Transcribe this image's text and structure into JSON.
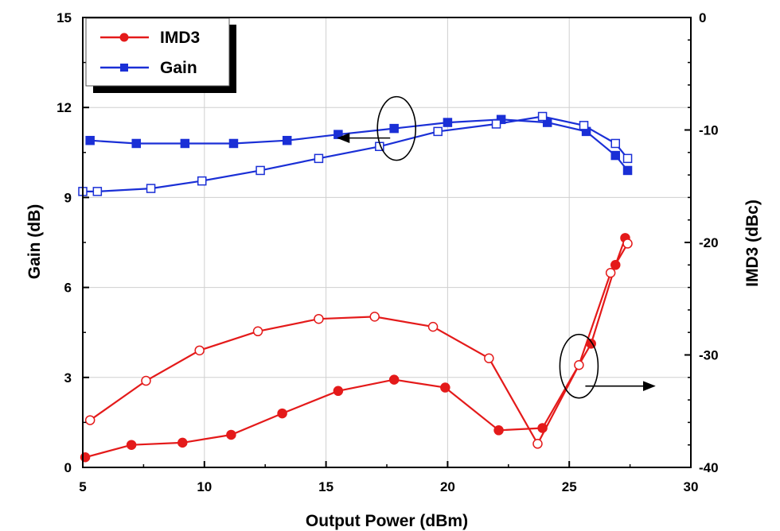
{
  "chart_data": {
    "type": "line",
    "xlabel": "Output Power (dBm)",
    "ylabel": "Gain (dB)",
    "y2label": "IMD3 (dBc)",
    "xlim": [
      5,
      30
    ],
    "ylim": [
      0,
      15
    ],
    "y2lim": [
      -40,
      0
    ],
    "xticks": [
      "5",
      "10",
      "15",
      "20",
      "25",
      "30"
    ],
    "yticks": [
      "0",
      "3",
      "6",
      "9",
      "12",
      "15"
    ],
    "y2ticks": [
      "-40",
      "-30",
      "-20",
      "-10",
      "0"
    ],
    "grid": true,
    "legend_position": "top-left",
    "legend": [
      {
        "label": "IMD3",
        "color": "#e41a1a",
        "marker": "circle"
      },
      {
        "label": "Gain",
        "color": "#1a2fd6",
        "marker": "square"
      }
    ],
    "series": [
      {
        "name": "Gain",
        "axis": "left",
        "color": "#1a2fd6",
        "marker": "square",
        "fill": "filled",
        "x": [
          5.3,
          7.2,
          9.2,
          11.2,
          13.4,
          15.5,
          17.8,
          20.0,
          22.2,
          24.1,
          25.7,
          26.9,
          27.4
        ],
        "y": [
          10.9,
          10.8,
          10.8,
          10.8,
          10.9,
          11.1,
          11.3,
          11.5,
          11.6,
          11.5,
          11.2,
          10.4,
          9.9
        ]
      },
      {
        "name": "Gain",
        "axis": "left",
        "color": "#1a2fd6",
        "marker": "square",
        "fill": "open",
        "x": [
          5.0,
          5.6,
          7.8,
          9.9,
          12.3,
          14.7,
          17.2,
          19.6,
          22.0,
          23.9,
          25.6,
          26.9,
          27.4
        ],
        "y": [
          9.2,
          9.2,
          9.3,
          9.55,
          9.9,
          10.3,
          10.7,
          11.2,
          11.45,
          11.7,
          11.4,
          10.8,
          10.3
        ]
      },
      {
        "name": "IMD3",
        "axis": "right",
        "color": "#e41a1a",
        "marker": "circle",
        "fill": "filled",
        "x": [
          5.1,
          7.0,
          9.1,
          11.1,
          13.2,
          15.5,
          17.8,
          19.9,
          22.1,
          23.9,
          25.9,
          26.9,
          27.3
        ],
        "y": [
          -39.1,
          -38.0,
          -37.8,
          -37.1,
          -35.2,
          -33.2,
          -32.2,
          -32.9,
          -36.7,
          -36.5,
          -29.0,
          -22.0,
          -19.6
        ]
      },
      {
        "name": "IMD3",
        "axis": "right",
        "color": "#e41a1a",
        "marker": "circle",
        "fill": "open",
        "x": [
          5.3,
          7.6,
          9.8,
          12.2,
          14.7,
          17.0,
          19.4,
          21.7,
          23.7,
          25.4,
          26.7,
          27.4
        ],
        "y": [
          -35.8,
          -32.3,
          -29.6,
          -27.9,
          -26.8,
          -26.6,
          -27.5,
          -30.3,
          -37.9,
          -30.9,
          -22.7,
          -20.1
        ]
      }
    ],
    "annotations": [
      {
        "shape": "ellipse",
        "around": "Gain",
        "x": 17.9,
        "y": 11.3,
        "arrow": "left",
        "arrow_to_x": 15.5
      },
      {
        "shape": "ellipse",
        "around": "IMD3",
        "x": 25.4,
        "y": -31.0,
        "arrow": "right",
        "arrow_to_x": 28.5
      }
    ]
  }
}
